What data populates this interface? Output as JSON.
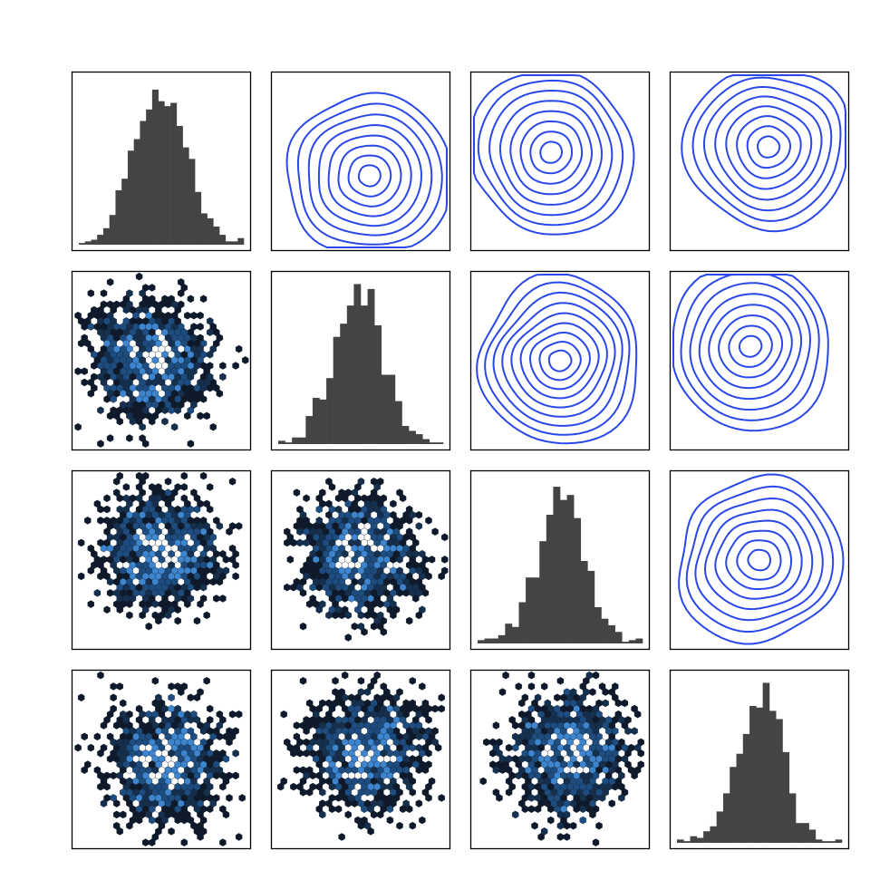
{
  "chart_data": {
    "type": "pair-grid",
    "layout": {
      "rows": 4,
      "cols": 4
    },
    "variables": [
      "",
      "",
      "",
      ""
    ],
    "axes_visible": false,
    "colors": {
      "hist": "#444444",
      "kde": "#2a48e8",
      "hex_cmap": [
        "#0e1a2b",
        "#15304f",
        "#1d4d80",
        "#3d85cf",
        "#ffffff"
      ]
    },
    "panels": [
      {
        "row": 0,
        "col": 0,
        "type": "bar",
        "role": "hist",
        "range": [
          -3.3,
          3.4
        ],
        "ylim": [
          0,
          1.0
        ],
        "values": [
          0.01,
          0.02,
          0.03,
          0.06,
          0.1,
          0.18,
          0.33,
          0.4,
          0.57,
          0.64,
          0.75,
          0.82,
          0.94,
          0.87,
          0.84,
          0.86,
          0.72,
          0.59,
          0.52,
          0.32,
          0.19,
          0.16,
          0.11,
          0.06,
          0.02,
          0.02,
          0.04
        ]
      },
      {
        "row": 0,
        "col": 1,
        "type": "kde",
        "role": "kde",
        "center": [
          0.55,
          0.58
        ],
        "levels": 8,
        "seed": 11
      },
      {
        "row": 0,
        "col": 2,
        "type": "kde",
        "role": "kde",
        "center": [
          0.45,
          0.45
        ],
        "levels": 8,
        "seed": 23
      },
      {
        "row": 0,
        "col": 3,
        "type": "kde",
        "role": "kde",
        "center": [
          0.55,
          0.42
        ],
        "levels": 8,
        "seed": 37
      },
      {
        "row": 1,
        "col": 0,
        "type": "heatmap",
        "role": "hexbin",
        "center": [
          0.45,
          0.5
        ],
        "seed": 101
      },
      {
        "row": 1,
        "col": 1,
        "type": "bar",
        "role": "hist",
        "range": [
          -3.0,
          3.6
        ],
        "ylim": [
          0,
          1.0
        ],
        "values": [
          0.02,
          0.01,
          0.04,
          0.04,
          0.17,
          0.28,
          0.27,
          0.4,
          0.65,
          0.73,
          0.84,
          0.97,
          0.84,
          0.94,
          0.72,
          0.42,
          0.42,
          0.26,
          0.11,
          0.08,
          0.06,
          0.03,
          0.01,
          0.01
        ]
      },
      {
        "row": 1,
        "col": 2,
        "type": "kde",
        "role": "kde",
        "center": [
          0.5,
          0.5
        ],
        "levels": 9,
        "seed": 53
      },
      {
        "row": 1,
        "col": 3,
        "type": "kde",
        "role": "kde",
        "center": [
          0.45,
          0.42
        ],
        "levels": 8,
        "seed": 67
      },
      {
        "row": 2,
        "col": 0,
        "type": "heatmap",
        "role": "hexbin",
        "center": [
          0.5,
          0.45
        ],
        "seed": 211
      },
      {
        "row": 2,
        "col": 1,
        "type": "heatmap",
        "role": "hexbin",
        "center": [
          0.5,
          0.48
        ],
        "seed": 223
      },
      {
        "row": 2,
        "col": 2,
        "type": "bar",
        "role": "hist",
        "range": [
          -3.3,
          3.4
        ],
        "ylim": [
          0,
          1.0
        ],
        "values": [
          0.02,
          0.03,
          0.03,
          0.05,
          0.12,
          0.1,
          0.25,
          0.4,
          0.4,
          0.62,
          0.78,
          0.95,
          0.87,
          0.9,
          0.76,
          0.5,
          0.44,
          0.22,
          0.15,
          0.11,
          0.07,
          0.01,
          0.02,
          0.03
        ]
      },
      {
        "row": 2,
        "col": 3,
        "type": "kde",
        "role": "kde",
        "center": [
          0.5,
          0.5
        ],
        "levels": 8,
        "seed": 89
      },
      {
        "row": 3,
        "col": 0,
        "type": "heatmap",
        "role": "hexbin",
        "center": [
          0.52,
          0.52
        ],
        "seed": 307
      },
      {
        "row": 3,
        "col": 1,
        "type": "heatmap",
        "role": "hexbin",
        "center": [
          0.55,
          0.47
        ],
        "seed": 311
      },
      {
        "row": 3,
        "col": 2,
        "type": "heatmap",
        "role": "hexbin",
        "center": [
          0.55,
          0.48
        ],
        "seed": 331
      },
      {
        "row": 3,
        "col": 3,
        "type": "bar",
        "role": "hist",
        "range": [
          -3.0,
          3.4
        ],
        "ylim": [
          0,
          1.0
        ],
        "values": [
          0.02,
          0.01,
          0.04,
          0.03,
          0.07,
          0.1,
          0.19,
          0.3,
          0.46,
          0.54,
          0.66,
          0.83,
          0.82,
          0.97,
          0.8,
          0.75,
          0.55,
          0.3,
          0.12,
          0.12,
          0.08,
          0.02,
          0.01,
          0.01,
          0.02
        ]
      }
    ]
  }
}
